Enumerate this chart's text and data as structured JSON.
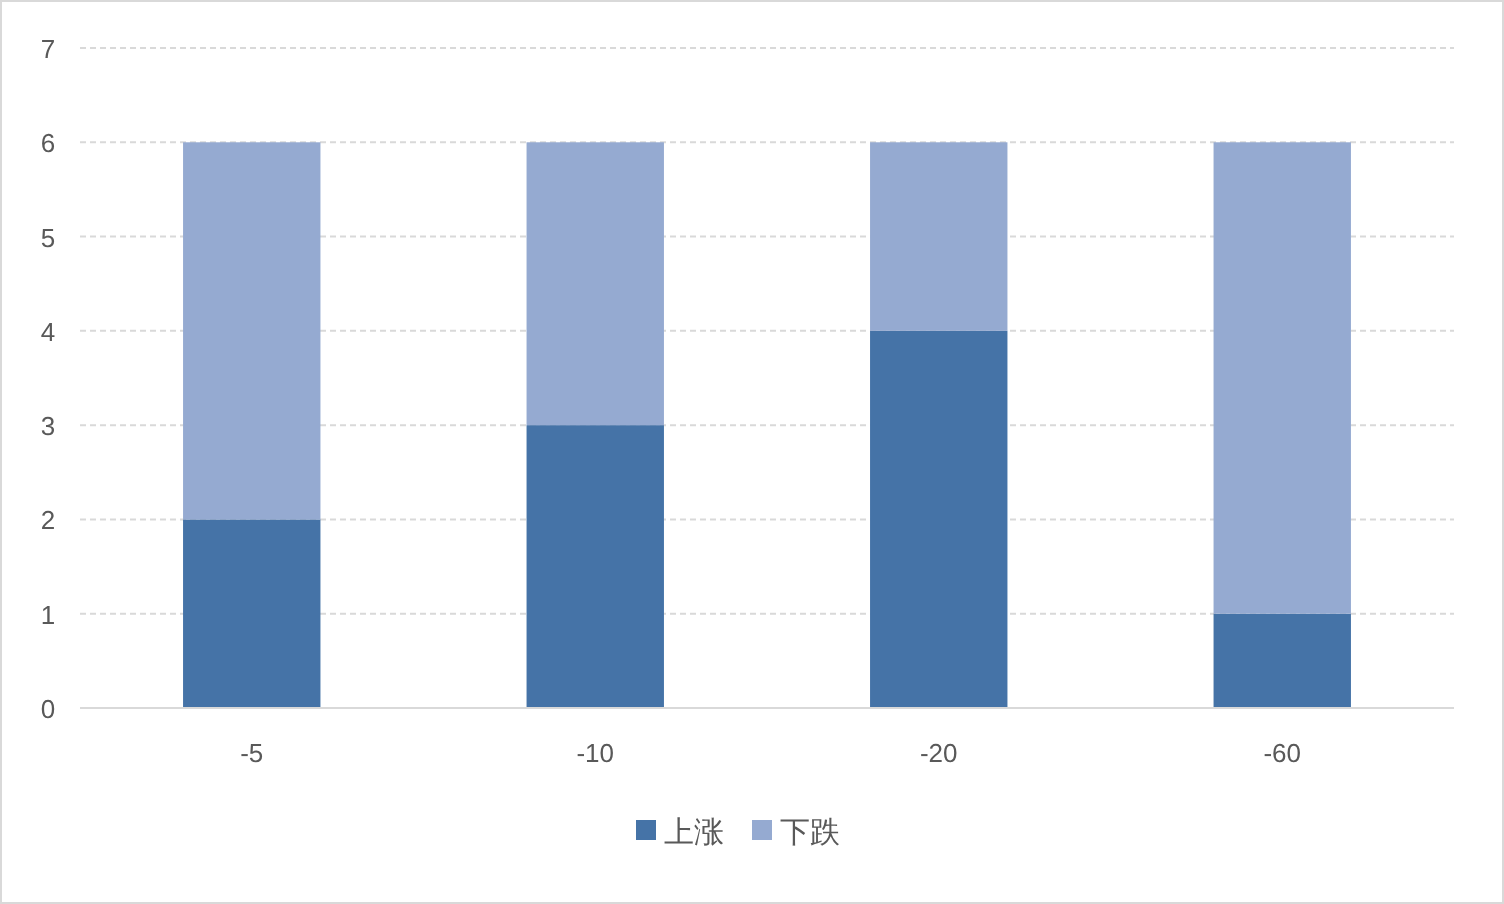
{
  "chart_data": {
    "type": "bar",
    "stacked": true,
    "categories": [
      "-5",
      "-10",
      "-20",
      "-60"
    ],
    "series": [
      {
        "name": "上涨",
        "color": "#4573a7",
        "values": [
          2,
          3,
          4,
          1
        ]
      },
      {
        "name": "下跌",
        "color": "#95aad1",
        "values": [
          4,
          3,
          2,
          5
        ]
      }
    ],
    "ylim": [
      0,
      7
    ],
    "yticks": [
      0,
      1,
      2,
      3,
      4,
      5,
      6,
      7
    ],
    "grid": "y",
    "legend": "bottom"
  }
}
